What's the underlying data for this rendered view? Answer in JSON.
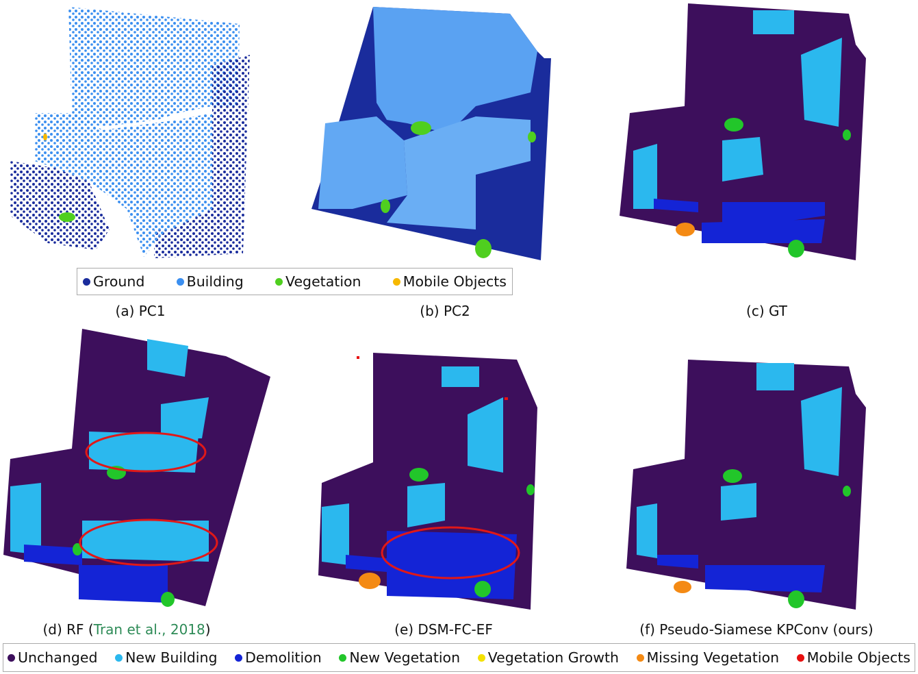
{
  "colors": {
    "ground": "#1a2c9c",
    "building": "#3b8ff0",
    "vegetation": "#4fcf1f",
    "mobile_objects_pc": "#f6b800",
    "unchanged": "#3d0f5c",
    "new_building": "#2bb8ee",
    "demolition": "#1424d6",
    "new_vegetation": "#22c62a",
    "vegetation_growth": "#f4e100",
    "missing_vegetation": "#f48a14",
    "mobile_objects_change": "#e81010",
    "highlight_ellipse": "#e01818"
  },
  "panels": [
    {
      "id": "a",
      "caption": "(a) PC1"
    },
    {
      "id": "b",
      "caption": "(b) PC2"
    },
    {
      "id": "c",
      "caption": "(c) GT"
    },
    {
      "id": "d",
      "caption_prefix": "(d) RF (",
      "caption_cite": "Tran et al., 2018",
      "caption_suffix": ")"
    },
    {
      "id": "e",
      "caption": "(e) DSM-FC-EF"
    },
    {
      "id": "f",
      "caption": "(f) Pseudo-Siamese KPConv (ours)"
    }
  ],
  "legend_top": [
    {
      "label": "Ground",
      "color": "#1a2c9c"
    },
    {
      "label": "Building",
      "color": "#3b8ff0"
    },
    {
      "label": "Vegetation",
      "color": "#4fcf1f"
    },
    {
      "label": "Mobile Objects",
      "color": "#f6b800"
    }
  ],
  "legend_bottom": [
    {
      "label": "Unchanged",
      "color": "#3d0f5c"
    },
    {
      "label": "New Building",
      "color": "#2bb8ee"
    },
    {
      "label": "Demolition",
      "color": "#1424d6"
    },
    {
      "label": "New Vegetation",
      "color": "#22c62a"
    },
    {
      "label": "Vegetation Growth",
      "color": "#f4e100"
    },
    {
      "label": "Missing Vegetation",
      "color": "#f48a14"
    },
    {
      "label": "Mobile Objects",
      "color": "#e81010"
    }
  ]
}
